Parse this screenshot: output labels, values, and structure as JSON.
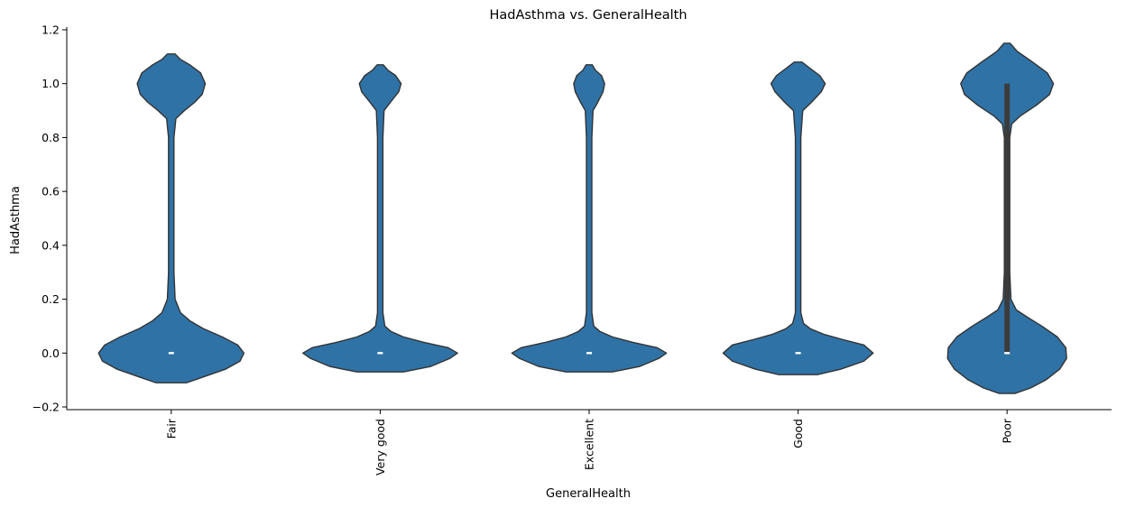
{
  "chart_data": {
    "type": "violin",
    "title": "HadAsthma vs. GeneralHealth",
    "xlabel": "GeneralHealth",
    "ylabel": "HadAsthma",
    "categories": [
      "Fair",
      "Very good",
      "Excellent",
      "Good",
      "Poor"
    ],
    "ylim": [
      -0.21,
      1.21
    ],
    "yticks": [
      -0.2,
      0.0,
      0.2,
      0.4,
      0.6,
      0.8,
      1.0,
      1.2
    ],
    "ytick_labels": [
      "−0.2",
      "0.0",
      "0.2",
      "0.4",
      "0.6",
      "0.8",
      "1.0",
      "1.2"
    ],
    "grid": false,
    "fill_color": "#2f72a6",
    "edge_color": "#333333",
    "violins": [
      {
        "category": "Fair",
        "median": 0,
        "q1": 0,
        "q3": 0,
        "cut_low": -0.11,
        "cut_high": 1.11,
        "profile": [
          [
            -0.11,
            0.2
          ],
          [
            -0.09,
            0.4
          ],
          [
            -0.06,
            0.7
          ],
          [
            -0.03,
            0.89
          ],
          [
            0.0,
            0.94
          ],
          [
            0.03,
            0.86
          ],
          [
            0.06,
            0.66
          ],
          [
            0.09,
            0.42
          ],
          [
            0.12,
            0.24
          ],
          [
            0.15,
            0.12
          ],
          [
            0.2,
            0.05
          ],
          [
            0.3,
            0.035
          ],
          [
            0.8,
            0.035
          ],
          [
            0.87,
            0.06
          ],
          [
            0.9,
            0.17
          ],
          [
            0.93,
            0.3
          ],
          [
            0.96,
            0.4
          ],
          [
            1.0,
            0.44
          ],
          [
            1.04,
            0.38
          ],
          [
            1.07,
            0.24
          ],
          [
            1.09,
            0.12
          ],
          [
            1.11,
            0.05
          ]
        ]
      },
      {
        "category": "Very good",
        "median": 0,
        "q1": 0,
        "q3": 0,
        "cut_low": -0.07,
        "cut_high": 1.07,
        "profile": [
          [
            -0.07,
            0.3
          ],
          [
            -0.05,
            0.65
          ],
          [
            -0.02,
            0.9
          ],
          [
            0.0,
            1.0
          ],
          [
            0.02,
            0.88
          ],
          [
            0.04,
            0.56
          ],
          [
            0.06,
            0.3
          ],
          [
            0.08,
            0.14
          ],
          [
            0.1,
            0.06
          ],
          [
            0.15,
            0.035
          ],
          [
            0.8,
            0.035
          ],
          [
            0.9,
            0.05
          ],
          [
            0.93,
            0.13
          ],
          [
            0.97,
            0.24
          ],
          [
            1.0,
            0.27
          ],
          [
            1.03,
            0.2
          ],
          [
            1.05,
            0.1
          ],
          [
            1.07,
            0.04
          ]
        ]
      },
      {
        "category": "Excellent",
        "median": 0,
        "q1": 0,
        "q3": 0,
        "cut_low": -0.07,
        "cut_high": 1.07,
        "profile": [
          [
            -0.07,
            0.3
          ],
          [
            -0.05,
            0.65
          ],
          [
            -0.02,
            0.9
          ],
          [
            0.0,
            1.0
          ],
          [
            0.02,
            0.88
          ],
          [
            0.04,
            0.56
          ],
          [
            0.06,
            0.3
          ],
          [
            0.08,
            0.14
          ],
          [
            0.1,
            0.06
          ],
          [
            0.15,
            0.035
          ],
          [
            0.8,
            0.035
          ],
          [
            0.9,
            0.05
          ],
          [
            0.93,
            0.11
          ],
          [
            0.97,
            0.18
          ],
          [
            1.0,
            0.2
          ],
          [
            1.03,
            0.16
          ],
          [
            1.05,
            0.08
          ],
          [
            1.07,
            0.04
          ]
        ]
      },
      {
        "category": "Good",
        "median": 0,
        "q1": 0,
        "q3": 0,
        "cut_low": -0.08,
        "cut_high": 1.08,
        "profile": [
          [
            -0.08,
            0.25
          ],
          [
            -0.06,
            0.55
          ],
          [
            -0.03,
            0.85
          ],
          [
            0.0,
            0.97
          ],
          [
            0.03,
            0.85
          ],
          [
            0.05,
            0.58
          ],
          [
            0.07,
            0.33
          ],
          [
            0.09,
            0.16
          ],
          [
            0.11,
            0.07
          ],
          [
            0.15,
            0.035
          ],
          [
            0.8,
            0.035
          ],
          [
            0.9,
            0.06
          ],
          [
            0.93,
            0.17
          ],
          [
            0.97,
            0.3
          ],
          [
            1.0,
            0.35
          ],
          [
            1.03,
            0.28
          ],
          [
            1.06,
            0.14
          ],
          [
            1.08,
            0.05
          ]
        ]
      },
      {
        "category": "Poor",
        "median": 0,
        "q1": 0,
        "q3": 1,
        "cut_low": -0.15,
        "cut_high": 1.15,
        "profile": [
          [
            -0.15,
            0.1
          ],
          [
            -0.13,
            0.3
          ],
          [
            -0.1,
            0.5
          ],
          [
            -0.06,
            0.68
          ],
          [
            -0.02,
            0.77
          ],
          [
            0.02,
            0.76
          ],
          [
            0.06,
            0.65
          ],
          [
            0.1,
            0.45
          ],
          [
            0.13,
            0.28
          ],
          [
            0.16,
            0.12
          ],
          [
            0.2,
            0.05
          ],
          [
            0.3,
            0.035
          ],
          [
            0.8,
            0.035
          ],
          [
            0.85,
            0.06
          ],
          [
            0.88,
            0.17
          ],
          [
            0.92,
            0.38
          ],
          [
            0.96,
            0.55
          ],
          [
            1.0,
            0.6
          ],
          [
            1.04,
            0.52
          ],
          [
            1.08,
            0.33
          ],
          [
            1.12,
            0.13
          ],
          [
            1.15,
            0.04
          ]
        ]
      }
    ]
  }
}
